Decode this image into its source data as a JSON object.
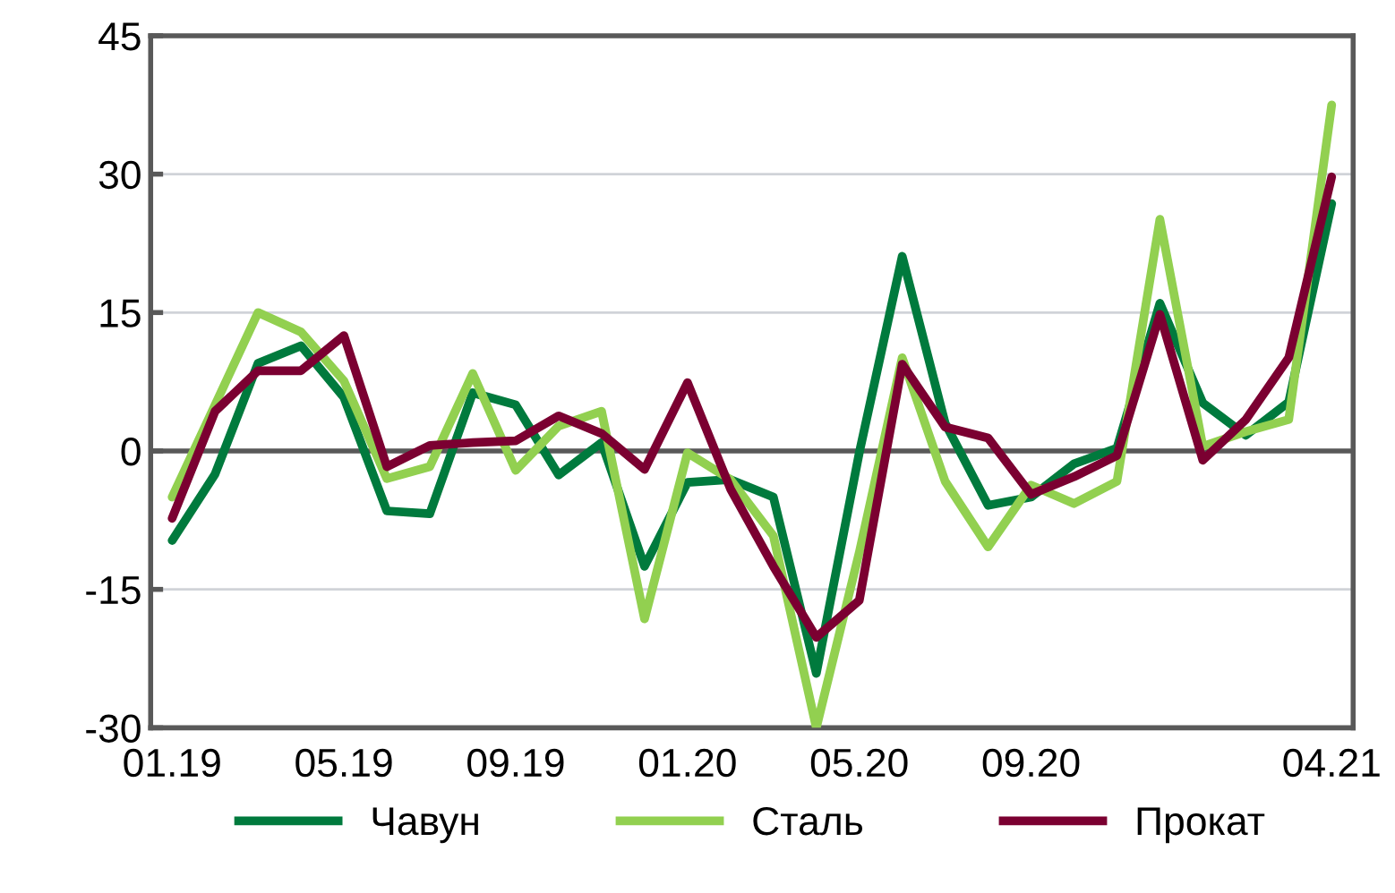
{
  "chart_data": {
    "type": "line",
    "categories": [
      "01.19",
      null,
      null,
      null,
      "05.19",
      null,
      null,
      null,
      "09.19",
      null,
      null,
      null,
      "01.20",
      null,
      null,
      null,
      "05.20",
      null,
      null,
      null,
      "09.20",
      null,
      null,
      null,
      null,
      null,
      null,
      "04.21"
    ],
    "series": [
      {
        "name": "Чавун",
        "color": "#007a3d",
        "values": [
          -9.7,
          -2.5,
          9.5,
          11.4,
          5.8,
          -6.5,
          -6.8,
          6.3,
          5.0,
          -2.6,
          0.9,
          -12.5,
          -3.4,
          -3.1,
          -5.0,
          -24.1,
          -0.2,
          21.1,
          3.0,
          -5.9,
          -5.0,
          -1.4,
          0.3,
          16.0,
          5.2,
          1.7,
          5.3,
          26.8
        ]
      },
      {
        "name": "Сталь",
        "color": "#92d050",
        "values": [
          -5.0,
          5.0,
          15.0,
          12.9,
          7.6,
          -3.0,
          -1.7,
          8.4,
          -2.1,
          2.7,
          4.3,
          -18.2,
          -0.2,
          -3.1,
          -9.2,
          -30.0,
          -11.0,
          10.1,
          -3.3,
          -10.4,
          -3.7,
          -5.7,
          -3.3,
          25.1,
          0.5,
          2.1,
          3.4,
          37.5
        ]
      },
      {
        "name": "Прокат",
        "color": "#7b0031",
        "values": [
          -7.3,
          4.3,
          8.7,
          8.7,
          12.5,
          -1.7,
          0.6,
          0.9,
          1.1,
          3.8,
          1.9,
          -2.0,
          7.4,
          -4.1,
          -12.5,
          -20.2,
          -16.2,
          9.4,
          2.6,
          1.4,
          -4.7,
          -2.8,
          -0.5,
          14.8,
          -1.0,
          3.4,
          10.1,
          29.7
        ]
      }
    ],
    "ylim": [
      -30,
      45
    ],
    "yticks": [
      -30,
      -15,
      0,
      15,
      30,
      45
    ],
    "grid": "y",
    "legend": "bottom",
    "marker": "none",
    "line_style": "solid",
    "ref_lines": [
      {
        "axis": "y",
        "value": 0,
        "color": "#595959"
      }
    ]
  }
}
